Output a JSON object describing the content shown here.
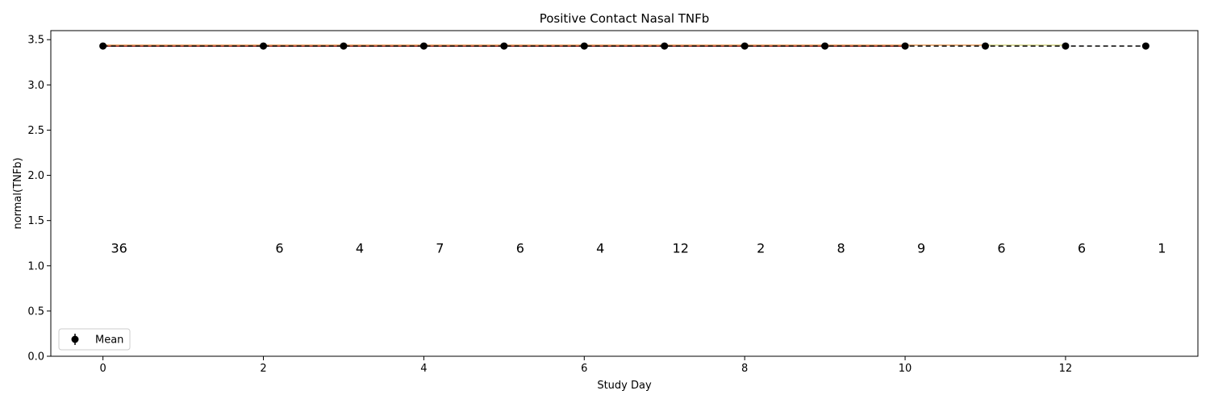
{
  "chart_data": {
    "type": "line",
    "title": "Positive Contact Nasal TNFb",
    "xlabel": "Study Day",
    "ylabel": "normal(TNFb)",
    "xlim": [
      -0.65,
      13.65
    ],
    "ylim": [
      0.0,
      3.6
    ],
    "x_ticks": [
      0,
      2,
      4,
      6,
      8,
      10,
      12
    ],
    "y_ticks": [
      0.0,
      0.5,
      1.0,
      1.5,
      2.0,
      2.5,
      3.0,
      3.5
    ],
    "y_tick_labels": [
      "0.0",
      "0.5",
      "1.0",
      "1.5",
      "2.0",
      "2.5",
      "3.0",
      "3.5"
    ],
    "series": [
      {
        "name": "Mean",
        "x": [
          0,
          2,
          3,
          4,
          5,
          6,
          7,
          8,
          9,
          10,
          11,
          12,
          13
        ],
        "y": [
          3.43,
          3.43,
          3.43,
          3.43,
          3.43,
          3.43,
          3.43,
          3.43,
          3.43,
          3.43,
          3.43,
          3.43,
          3.43
        ],
        "color": "#000000",
        "style": "dashed-with-markers"
      }
    ],
    "background_lines": [
      {
        "x": [
          0,
          10
        ],
        "y": [
          3.43,
          3.43
        ],
        "color": "#8b0000"
      },
      {
        "x": [
          0,
          11
        ],
        "y": [
          3.44,
          3.44
        ],
        "color": "#e8a060"
      },
      {
        "x": [
          11,
          12
        ],
        "y": [
          3.44,
          3.44
        ],
        "color": "#d9d98c"
      }
    ],
    "counts": [
      {
        "x": 0,
        "label": "36"
      },
      {
        "x": 2,
        "label": "6"
      },
      {
        "x": 3,
        "label": "4"
      },
      {
        "x": 4,
        "label": "7"
      },
      {
        "x": 5,
        "label": "6"
      },
      {
        "x": 6,
        "label": "4"
      },
      {
        "x": 7,
        "label": "12"
      },
      {
        "x": 8,
        "label": "2"
      },
      {
        "x": 9,
        "label": "8"
      },
      {
        "x": 10,
        "label": "9"
      },
      {
        "x": 11,
        "label": "6"
      },
      {
        "x": 12,
        "label": "6"
      },
      {
        "x": 13,
        "label": "1"
      }
    ],
    "counts_y": 1.2,
    "legend": {
      "placement": "lower-left",
      "entries": [
        "Mean"
      ]
    },
    "grid": false
  }
}
